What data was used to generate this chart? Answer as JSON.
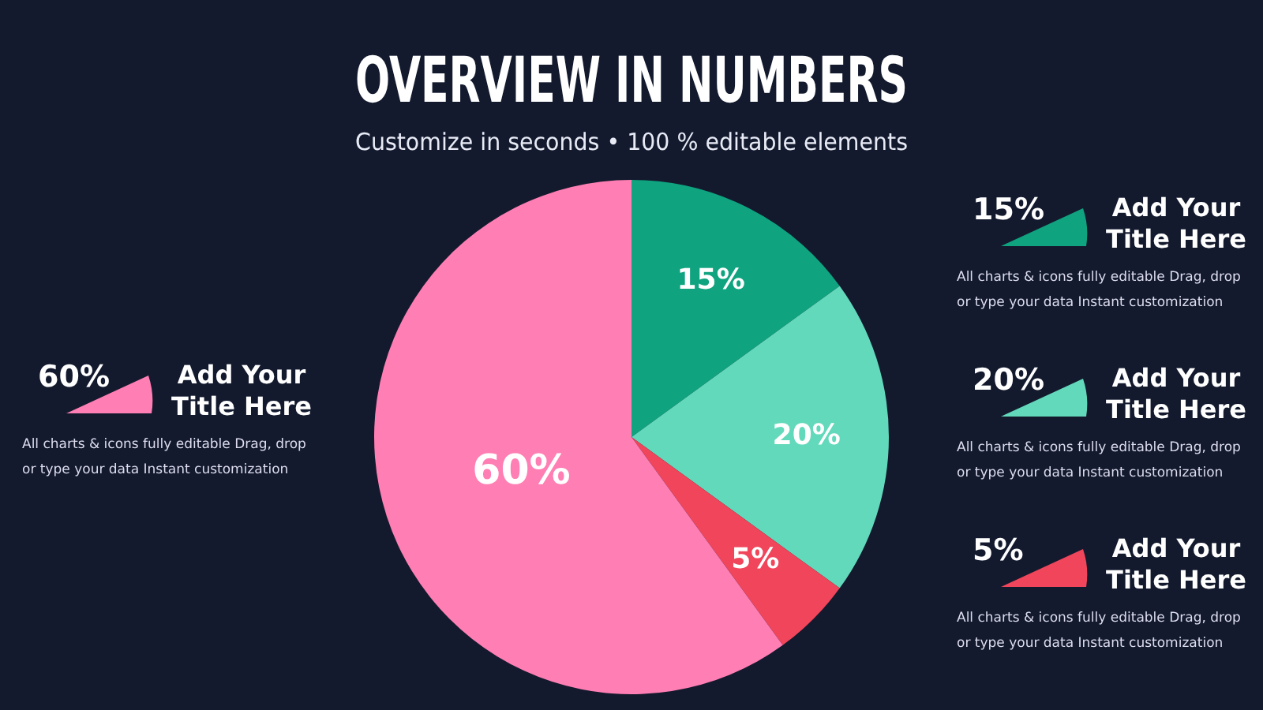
{
  "chart_data": {
    "type": "pie",
    "title": "OVERVIEW IN NUMBERS",
    "subtitle": "Customize in seconds • 100 % editable elements",
    "categories": [
      null,
      null,
      null,
      null
    ],
    "values": [
      15,
      20,
      5,
      60
    ],
    "value_labels": [
      "15%",
      "20%",
      "5%",
      "60%"
    ],
    "colors": [
      "#0fa37f",
      "#63d9bb",
      "#f0455a",
      "#ff7eb3"
    ],
    "annotations": [
      "Add Your Title Here",
      "All charts & icons fully editable Drag, drop or type your data Instant customization",
      "Add Your Title Here",
      "All charts & icons fully editable Drag, drop or type your data Instant customization",
      "Add Your Title Here",
      "All charts & icons fully editable Drag, drop or type your data Instant customization",
      "Add Your Title Here",
      "All charts & icons fully editable Drag, drop or type your data Instant customization"
    ]
  }
}
